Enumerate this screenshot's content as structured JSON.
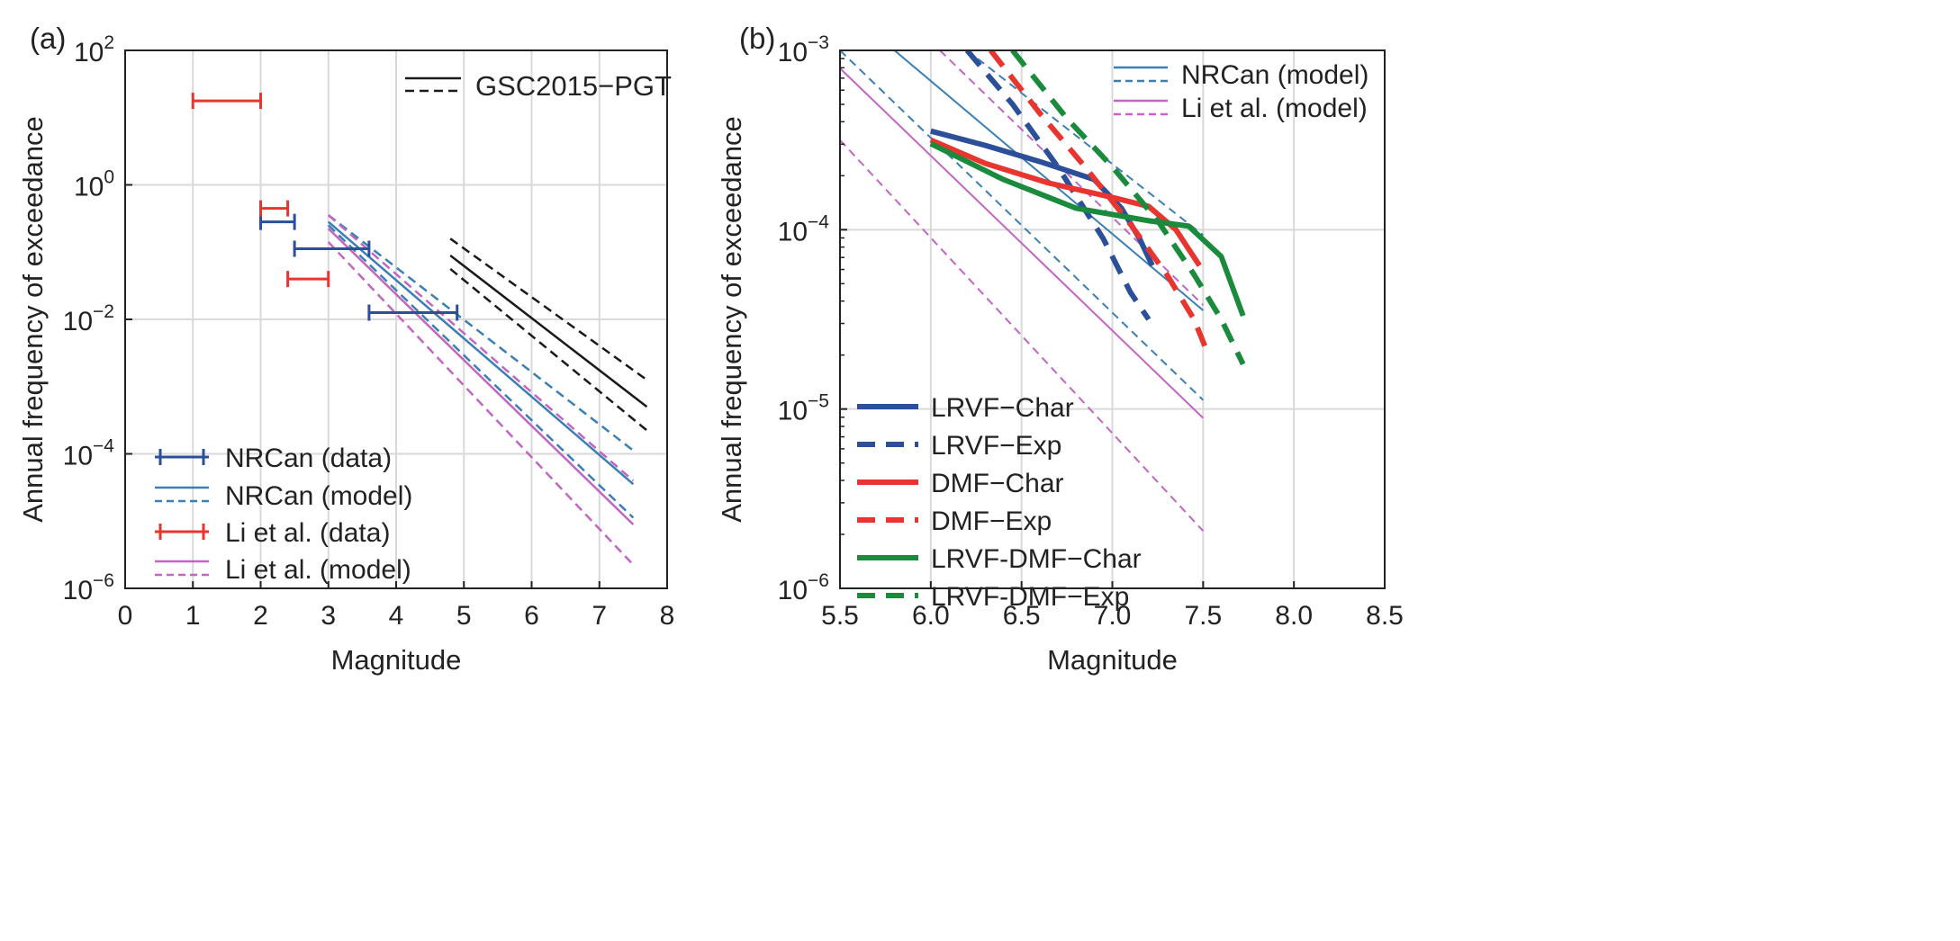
{
  "chart_data": [
    {
      "panel": "(a)",
      "type": "line",
      "xlabel": "Magnitude",
      "ylabel": "Annual frequency of exceedance",
      "xlim": [
        0,
        8
      ],
      "ylog_range": [
        -6,
        2
      ],
      "xticks": [
        "0",
        "1",
        "2",
        "3",
        "4",
        "5",
        "6",
        "7",
        "8"
      ],
      "yticks": [
        {
          "base": "10",
          "exp": "2",
          "v": 2
        },
        {
          "base": "10",
          "exp": "0",
          "v": 0
        },
        {
          "base": "10",
          "exp": "−2",
          "v": -2
        },
        {
          "base": "10",
          "exp": "−4",
          "v": -4
        },
        {
          "base": "10",
          "exp": "−6",
          "v": -6
        }
      ],
      "grid": true,
      "error_bars": [
        {
          "series": "NRCan (data)",
          "x1": 2.0,
          "x2": 2.5,
          "log10y": -0.55
        },
        {
          "series": "NRCan (data)",
          "x1": 2.5,
          "x2": 3.6,
          "log10y": -0.95
        },
        {
          "series": "NRCan (data)",
          "x1": 3.6,
          "x2": 4.9,
          "log10y": -1.9
        },
        {
          "series": "Li et al. (data)",
          "x1": 1.0,
          "x2": 2.0,
          "log10y": 1.25
        },
        {
          "series": "Li et al. (data)",
          "x1": 2.0,
          "x2": 2.4,
          "log10y": -0.35
        },
        {
          "series": "Li et al. (data)",
          "x1": 2.4,
          "x2": 3.0,
          "log10y": -1.4
        }
      ],
      "lines": [
        {
          "series": "GSC2015-PGT",
          "style": "solid",
          "x": [
            4.8,
            7.7
          ],
          "log10y": [
            -1.05,
            -3.3
          ]
        },
        {
          "series": "GSC2015-PGT",
          "style": "dashed",
          "x": [
            4.8,
            7.7
          ],
          "log10y": [
            -0.8,
            -2.9
          ]
        },
        {
          "series": "GSC2015-PGT",
          "style": "dashed",
          "x": [
            4.8,
            7.7
          ],
          "log10y": [
            -1.25,
            -3.65
          ]
        },
        {
          "series": "NRCan (model)",
          "style": "solid",
          "x": [
            3.0,
            7.5
          ],
          "log10y": [
            -0.55,
            -4.45
          ]
        },
        {
          "series": "NRCan (model)",
          "style": "dashed",
          "x": [
            3.0,
            7.5
          ],
          "log10y": [
            -0.45,
            -3.95
          ]
        },
        {
          "series": "NRCan (model)",
          "style": "dashed",
          "x": [
            3.0,
            7.5
          ],
          "log10y": [
            -0.6,
            -4.95
          ]
        },
        {
          "series": "Li et al. (model)",
          "style": "solid",
          "x": [
            3.0,
            7.5
          ],
          "log10y": [
            -0.65,
            -5.05
          ]
        },
        {
          "series": "Li et al. (model)",
          "style": "dashed",
          "x": [
            3.0,
            7.5
          ],
          "log10y": [
            -0.45,
            -4.4
          ]
        },
        {
          "series": "Li et al. (model)",
          "style": "dashed",
          "x": [
            3.0,
            7.5
          ],
          "log10y": [
            -0.85,
            -5.65
          ]
        }
      ],
      "legend_top": {
        "label": "GSC2015−PGT",
        "placement": "top-right"
      },
      "legend": [
        {
          "label": "NRCan (data)",
          "kind": "errorbar",
          "color": "#2c4f9a"
        },
        {
          "label": "NRCan (model)",
          "kind": "line-pair",
          "color": "#3a7fb5"
        },
        {
          "label": "Li et al. (data)",
          "kind": "errorbar",
          "color": "#e8352f"
        },
        {
          "label": "Li et al. (model)",
          "kind": "line-pair",
          "color": "#c266c2"
        }
      ],
      "colors": {
        "nrcan_data": "#2c4f9a",
        "nrcan_model": "#3a7fb5",
        "li_data": "#e8352f",
        "li_model": "#c266c2",
        "gsc": "#1a1a1a"
      }
    },
    {
      "panel": "(b)",
      "type": "line",
      "xlabel": "Magnitude",
      "ylabel": "Annual frequency of exceedance",
      "xlim": [
        5.5,
        8.5
      ],
      "ylog_range": [
        -6,
        -3
      ],
      "xticks": [
        "5.5",
        "6.0",
        "6.5",
        "7.0",
        "7.5",
        "8.0",
        "8.5"
      ],
      "yticks": [
        {
          "base": "10",
          "exp": "−3",
          "v": -3
        },
        {
          "base": "10",
          "exp": "−4",
          "v": -4
        },
        {
          "base": "10",
          "exp": "−5",
          "v": -5
        },
        {
          "base": "10",
          "exp": "−6",
          "v": -6
        }
      ],
      "grid": true,
      "model_lines": [
        {
          "series": "NRCan (model)",
          "style": "solid",
          "x": [
            5.8,
            7.5
          ],
          "log10y": [
            -3.0,
            -4.45
          ]
        },
        {
          "series": "NRCan (model)",
          "style": "dashed",
          "x": [
            5.5,
            7.5
          ],
          "log10y": [
            -3.0,
            -4.95
          ]
        },
        {
          "series": "NRCan (model)",
          "style": "dashed",
          "x": [
            6.2,
            7.5
          ],
          "log10y": [
            -3.0,
            -4.03
          ]
        },
        {
          "series": "Li et al. (model)",
          "style": "solid",
          "x": [
            5.5,
            7.5
          ],
          "log10y": [
            -3.1,
            -5.05
          ]
        },
        {
          "series": "Li et al. (model)",
          "style": "dashed",
          "x": [
            5.5,
            7.5
          ],
          "log10y": [
            -3.5,
            -5.68
          ]
        },
        {
          "series": "Li et al. (model)",
          "style": "dashed",
          "x": [
            6.05,
            7.5
          ],
          "log10y": [
            -3.0,
            -4.42
          ]
        }
      ],
      "curves": [
        {
          "series": "LRVF−Char",
          "style": "solid",
          "x": [
            6.0,
            6.3,
            6.6,
            6.9,
            7.05,
            7.15,
            7.22
          ],
          "log10y": [
            -3.45,
            -3.53,
            -3.62,
            -3.72,
            -3.88,
            -4.05,
            -4.2
          ]
        },
        {
          "series": "LRVF−Exp",
          "style": "dashed",
          "x": [
            6.2,
            6.45,
            6.7,
            6.95,
            7.1,
            7.2
          ],
          "log10y": [
            -3.0,
            -3.3,
            -3.65,
            -4.05,
            -4.35,
            -4.5
          ]
        },
        {
          "series": "DMF−Char",
          "style": "solid",
          "x": [
            6.0,
            6.3,
            6.65,
            7.0,
            7.2,
            7.35,
            7.48
          ],
          "log10y": [
            -3.5,
            -3.63,
            -3.74,
            -3.82,
            -3.87,
            -4.0,
            -4.2
          ]
        },
        {
          "series": "DMF−Exp",
          "style": "dashed",
          "x": [
            6.33,
            6.6,
            6.85,
            7.1,
            7.3,
            7.45,
            7.53
          ],
          "log10y": [
            -3.0,
            -3.35,
            -3.65,
            -3.97,
            -4.25,
            -4.5,
            -4.7
          ]
        },
        {
          "series": "LRVF-DMF−Char",
          "style": "solid",
          "x": [
            6.0,
            6.4,
            6.8,
            7.2,
            7.42,
            7.6,
            7.72
          ],
          "log10y": [
            -3.52,
            -3.72,
            -3.88,
            -3.95,
            -3.98,
            -4.15,
            -4.48
          ]
        },
        {
          "series": "LRVF-DMF−Exp",
          "style": "dashed",
          "x": [
            6.45,
            6.75,
            7.0,
            7.25,
            7.45,
            7.6,
            7.72
          ],
          "log10y": [
            -3.0,
            -3.38,
            -3.65,
            -3.95,
            -4.25,
            -4.5,
            -4.75
          ]
        }
      ],
      "legend_top": [
        {
          "label": "NRCan (model)",
          "color": "#3a7fb5"
        },
        {
          "label": "Li et al. (model)",
          "color": "#c266c2"
        }
      ],
      "legend": [
        {
          "label": "LRVF−Char",
          "style": "solid",
          "color": "#2c4f9a"
        },
        {
          "label": "LRVF−Exp",
          "style": "dashed",
          "color": "#2c4f9a"
        },
        {
          "label": "DMF−Char",
          "style": "solid",
          "color": "#e8352f"
        },
        {
          "label": "DMF−Exp",
          "style": "dashed",
          "color": "#e8352f"
        },
        {
          "label": "LRVF-DMF−Char",
          "style": "solid",
          "color": "#1a8a3c"
        },
        {
          "label": "LRVF-DMF−Exp",
          "style": "dashed",
          "color": "#1a8a3c"
        }
      ],
      "colors": {
        "lrvf": "#2c4f9a",
        "dmf": "#e8352f",
        "lrvfdmf": "#1a8a3c",
        "nrcan_model": "#3a7fb5",
        "li_model": "#c266c2"
      }
    }
  ]
}
